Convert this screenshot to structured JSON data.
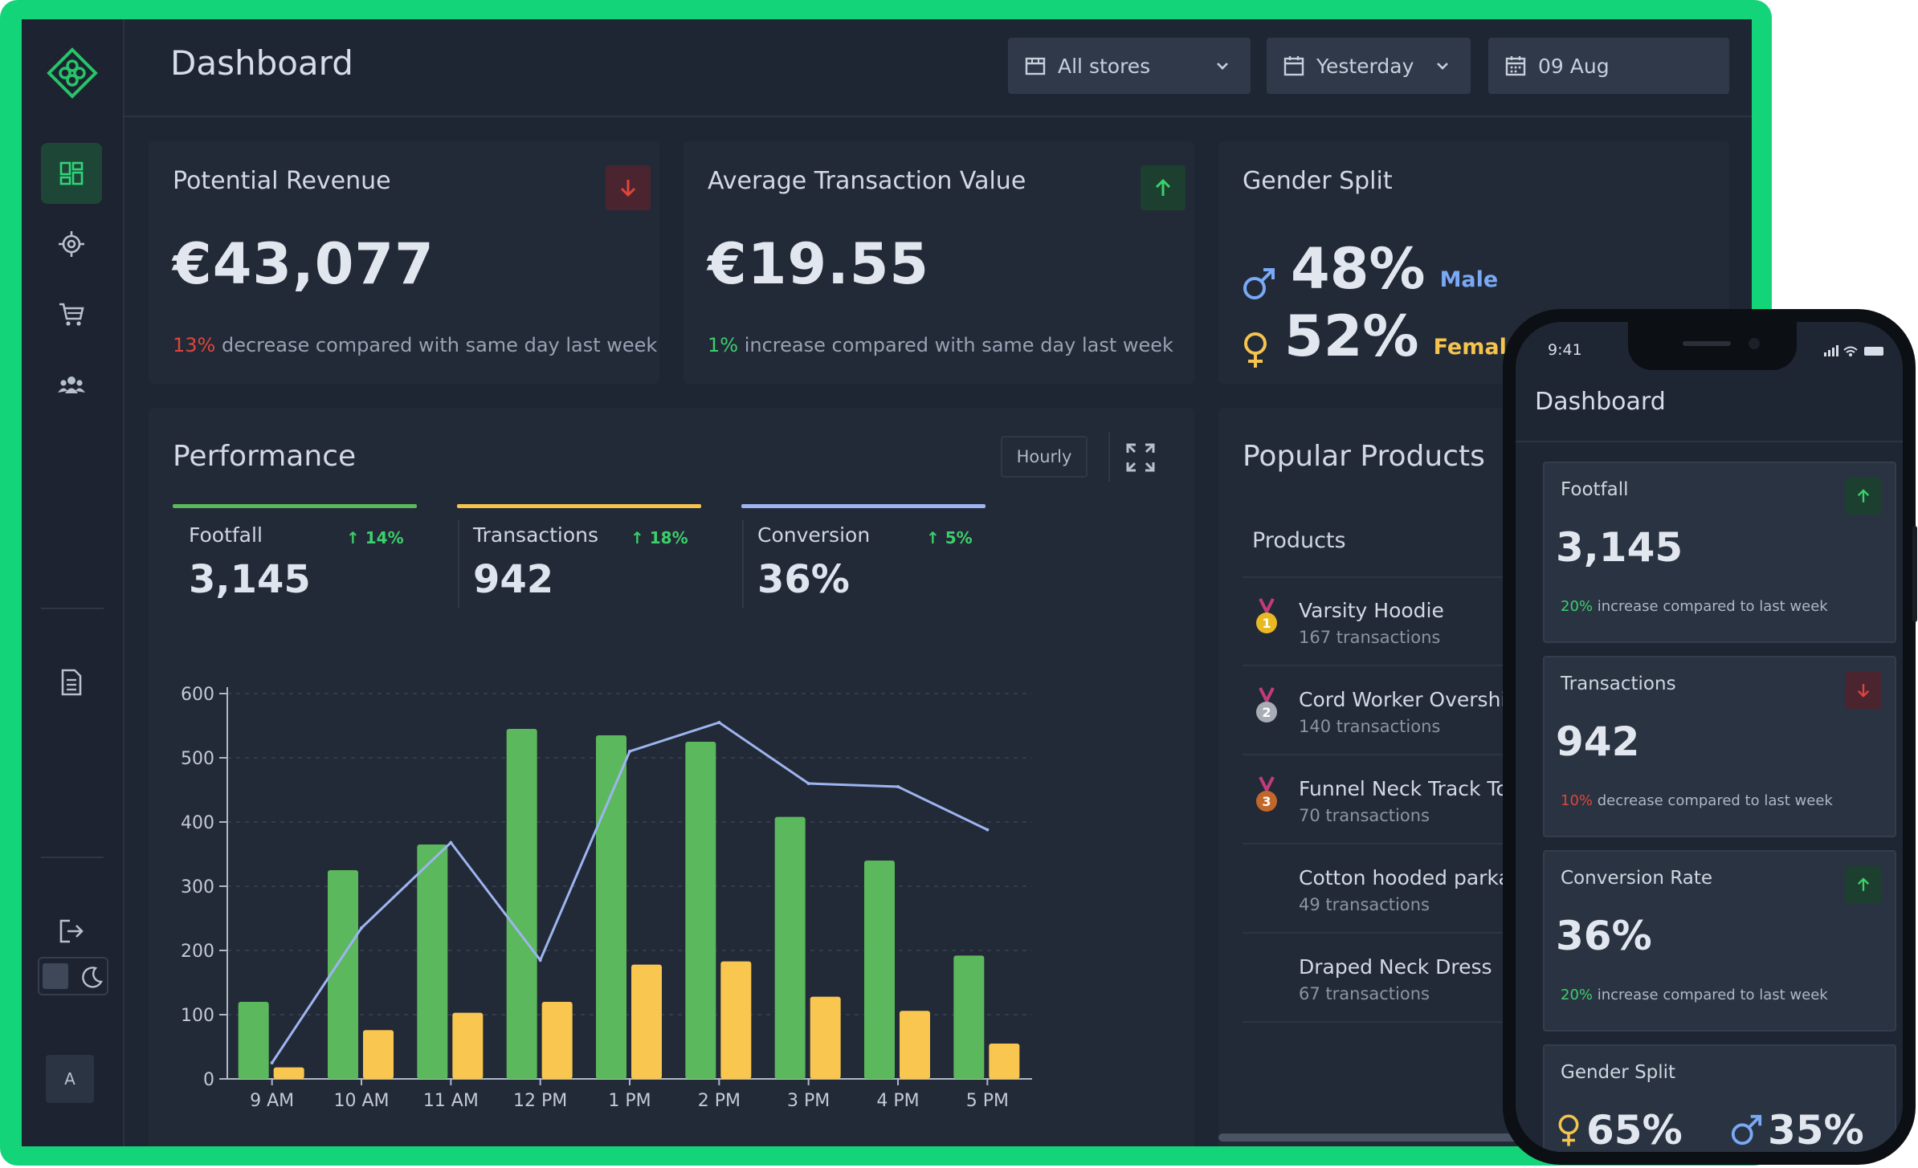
{
  "header": {
    "title": "Dashboard",
    "store_filter": "All stores",
    "period_filter": "Yesterday",
    "date": "09 Aug"
  },
  "sidebar": {
    "items": [
      "dashboard-icon",
      "target-icon",
      "cart-icon",
      "team-icon",
      "report-icon",
      "logout-icon"
    ],
    "avatar": "A"
  },
  "kpis": {
    "potential_revenue": {
      "title": "Potential Revenue",
      "value": "€43,077",
      "pct": "13%",
      "text": " decrease compared with same day last week"
    },
    "avg_transaction": {
      "title": "Average Transaction Value",
      "value": "€19.55",
      "pct": "1%",
      "text": " increase compared with same day last week"
    },
    "gender_split": {
      "title": "Gender Split",
      "male_pct": "48%",
      "male_label": "Male",
      "female_pct": "52%",
      "female_label": "Female"
    }
  },
  "performance": {
    "title": "Performance",
    "interval": "Hourly",
    "metrics": [
      {
        "name": "Footfall",
        "delta": "14%",
        "value": "3,145",
        "color": "#5cb85c"
      },
      {
        "name": "Transactions",
        "delta": "18%",
        "value": "942",
        "color": "#f4c44e"
      },
      {
        "name": "Conversion",
        "delta": "5%",
        "value": "36%",
        "color": "#9db4f0"
      }
    ]
  },
  "chart_data": {
    "type": "bar",
    "categories": [
      "9 AM",
      "10 AM",
      "11 AM",
      "12 PM",
      "1 PM",
      "2 PM",
      "3 PM",
      "4 PM",
      "5 PM"
    ],
    "ylim": [
      0,
      600
    ],
    "yticks": [
      "0",
      "100",
      "200",
      "300",
      "400",
      "500",
      "600"
    ],
    "grid": true,
    "series": [
      {
        "values": [
          120,
          325,
          365,
          545,
          535,
          525,
          408,
          340,
          192
        ],
        "color": "#5cb85c"
      },
      {
        "values": [
          18,
          76,
          103,
          120,
          178,
          183,
          128,
          106,
          55
        ],
        "color": "#f9c74f"
      },
      {
        "values": [
          25,
          235,
          368,
          185,
          510,
          555,
          460,
          455,
          388
        ],
        "color": "#9db4f0"
      }
    ]
  },
  "popular_products": {
    "title": "Popular Products",
    "column": "Products",
    "items": [
      {
        "name": "Varsity Hoodie",
        "sub": "167 transactions",
        "rank": "1"
      },
      {
        "name": "Cord Worker Overshirt",
        "sub": "140 transactions",
        "rank": "2"
      },
      {
        "name": "Funnel Neck Track Top",
        "sub": "70 transactions",
        "rank": "3"
      },
      {
        "name": "Cotton hooded parka",
        "sub": "49 transactions",
        "rank": ""
      },
      {
        "name": "Draped Neck Dress",
        "sub": "67 transactions",
        "rank": ""
      }
    ]
  },
  "phone": {
    "time": "9:41",
    "title": "Dashboard",
    "cards": [
      {
        "title": "Footfall",
        "value": "3,145",
        "pct": "20%",
        "text": " increase compared to last week"
      },
      {
        "title": "Transactions",
        "value": "942",
        "pct": "10%",
        "text": " decrease compared to last week"
      },
      {
        "title": "Conversion Rate",
        "value": "36%",
        "pct": "20%",
        "text": " increase compared to last week"
      }
    ],
    "gender": {
      "title": "Gender Split",
      "female_pct": "65%",
      "male_pct": "35%"
    }
  }
}
